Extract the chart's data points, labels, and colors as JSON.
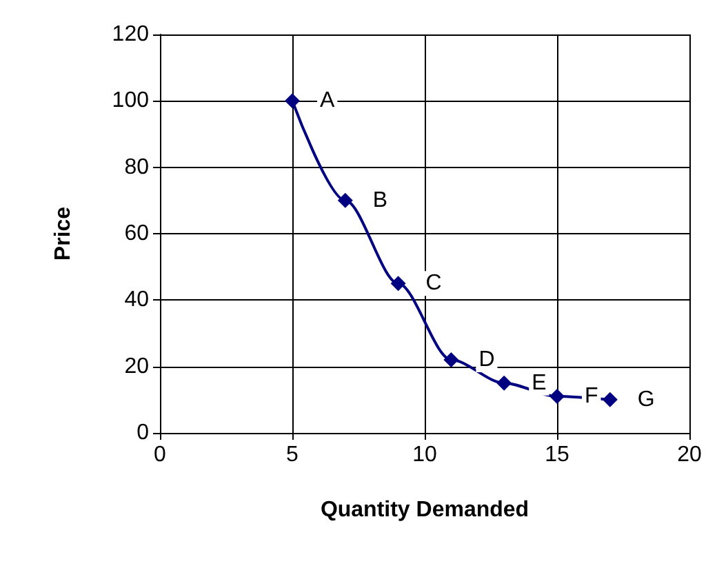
{
  "chart_data": {
    "type": "line",
    "xlabel": "Quantity Demanded",
    "ylabel": "Price",
    "x": [
      5,
      7,
      9,
      11,
      13,
      15,
      17
    ],
    "series": [
      {
        "color": "#000080",
        "values": [
          100,
          70,
          45,
          22,
          15,
          11,
          10
        ]
      }
    ],
    "xlim": [
      0,
      20
    ],
    "xticks": [
      0,
      5,
      10,
      15,
      20
    ],
    "ylim": [
      0,
      120
    ],
    "yticks": [
      0,
      20,
      40,
      60,
      80,
      100,
      120
    ],
    "grid": true,
    "marker": "diamond",
    "line_style": "solid",
    "annotations": [
      {
        "text": "A",
        "x": 5,
        "y": 100
      },
      {
        "text": "B",
        "x": 7,
        "y": 70
      },
      {
        "text": "C",
        "x": 9,
        "y": 45
      },
      {
        "text": "D",
        "x": 11,
        "y": 22
      },
      {
        "text": "E",
        "x": 13,
        "y": 15
      },
      {
        "text": "F",
        "x": 15,
        "y": 11
      },
      {
        "text": "G",
        "x": 17,
        "y": 10
      }
    ]
  }
}
